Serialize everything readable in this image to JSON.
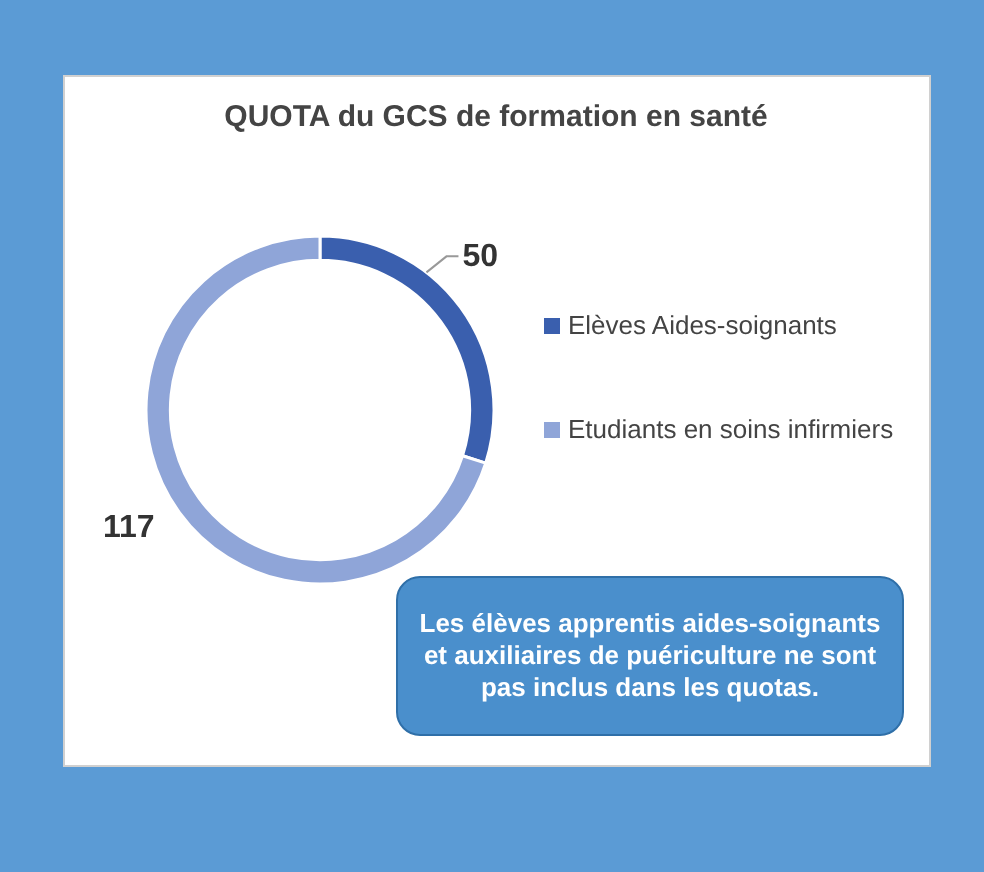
{
  "chart_data": {
    "type": "donut",
    "title": "QUOTA du GCS de formation en santé",
    "categories": [
      "Elèves Aides-soignants",
      "Etudiants en soins infirmiers"
    ],
    "values": [
      50,
      117
    ],
    "colors": [
      "#3a5fae",
      "#8fa5d8"
    ],
    "data_labels": true,
    "legend": "right",
    "annotations": [
      "Les élèves apprentis aides-soignants et auxiliaires de puériculture ne sont pas inclus dans les quotas."
    ]
  }
}
